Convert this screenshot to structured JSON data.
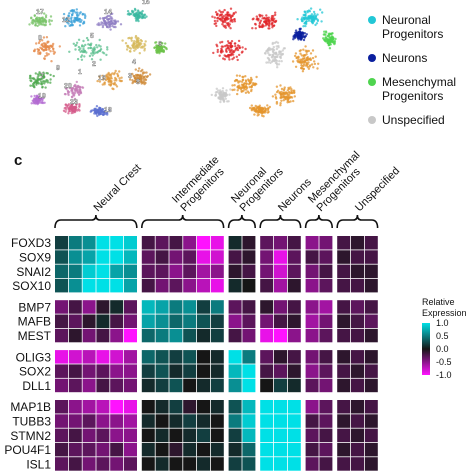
{
  "panel_label": "c",
  "legend_top": {
    "items": [
      {
        "label": "Neuronal Progenitors",
        "lines": [
          "Neuronal",
          "Progenitors"
        ],
        "color": "#22c7d6"
      },
      {
        "label": "Neurons",
        "lines": [
          "Neurons"
        ],
        "color": "#0a1f9e"
      },
      {
        "label": "Mesenchymal Progenitors",
        "lines": [
          "Mesenchymal",
          "Progenitors"
        ],
        "color": "#4fd44f"
      },
      {
        "label": "Unspecified",
        "lines": [
          "Unspecified"
        ],
        "color": "#c8c8c8"
      }
    ]
  },
  "tsne_cluster_labels": [
    "17",
    "12",
    "14",
    "15",
    "0",
    "5",
    "6",
    "7",
    "9",
    "20",
    "1",
    "16",
    "3",
    "19",
    "23",
    "18",
    "2",
    "4",
    "8"
  ],
  "heatmap": {
    "column_groups": [
      {
        "name": "Neural Crest",
        "lines": [
          "Neural Crest"
        ],
        "cols": 6
      },
      {
        "name": "Intermediate Progenitors",
        "lines": [
          "Intermediate",
          "Progenitors"
        ],
        "cols": 6
      },
      {
        "name": "Neuronal Progenitors",
        "lines": [
          "Neuronal",
          "Progenitors"
        ],
        "cols": 2
      },
      {
        "name": "Neurons",
        "lines": [
          "Neurons"
        ],
        "cols": 3
      },
      {
        "name": "Mesenchymal Progenitors",
        "lines": [
          "Mesenchymal",
          "Progenitors"
        ],
        "cols": 2
      },
      {
        "name": "Unspecified",
        "lines": [
          "Unspecified"
        ],
        "cols": 3
      }
    ],
    "row_blocks": [
      {
        "genes": [
          "FOXD3",
          "SOX9",
          "SNAI2",
          "SOX10"
        ]
      },
      {
        "genes": [
          "BMP7",
          "MAFB",
          "MEST"
        ]
      },
      {
        "genes": [
          "OLIG3",
          "SOX2",
          "DLL1"
        ]
      },
      {
        "genes": [
          "MAP1B",
          "TUBB3",
          "STMN2",
          "POU4F1",
          "ISL1"
        ]
      }
    ],
    "values": [
      [
        0.2,
        0.5,
        0.6,
        1.0,
        1.0,
        0.9,
        -0.2,
        -0.3,
        -0.2,
        -0.5,
        -1.0,
        -0.9,
        0.1,
        -0.1,
        -0.3,
        -0.4,
        -0.2,
        -0.5,
        -0.4,
        -0.2,
        -0.1,
        -0.2
      ],
      [
        0.3,
        0.6,
        0.7,
        1.0,
        1.0,
        0.8,
        -0.3,
        -0.2,
        -0.4,
        -0.3,
        -0.9,
        -0.8,
        -0.2,
        -0.1,
        -0.4,
        -0.9,
        -0.3,
        -0.2,
        -0.3,
        -0.1,
        -0.2,
        -0.2
      ],
      [
        0.4,
        0.5,
        0.9,
        1.0,
        0.7,
        0.6,
        -0.3,
        -0.3,
        -0.5,
        -0.3,
        -0.6,
        -0.5,
        -0.1,
        -0.2,
        -0.4,
        -0.8,
        -0.3,
        -0.4,
        -0.2,
        -0.2,
        -0.1,
        -0.1
      ],
      [
        0.3,
        0.6,
        1.0,
        1.0,
        1.0,
        0.7,
        -0.2,
        -0.4,
        -0.3,
        -0.5,
        -0.7,
        -0.9,
        0.1,
        0.0,
        -0.2,
        -0.6,
        -0.1,
        -0.5,
        -0.3,
        -0.2,
        -0.2,
        -0.1
      ],
      [
        -0.4,
        -0.2,
        -0.5,
        -0.1,
        0.1,
        -0.3,
        0.8,
        0.7,
        0.5,
        0.6,
        0.2,
        0.5,
        -0.3,
        -0.2,
        -0.1,
        -0.4,
        -0.2,
        -0.5,
        -0.6,
        -0.2,
        -0.3,
        -0.2
      ],
      [
        -0.2,
        -0.3,
        -0.1,
        0.1,
        -0.2,
        -0.4,
        0.7,
        0.6,
        0.4,
        0.5,
        0.3,
        0.2,
        -0.5,
        -0.3,
        -0.4,
        -0.2,
        -0.1,
        -0.6,
        -0.4,
        -0.1,
        -0.2,
        -0.3
      ],
      [
        -0.3,
        -0.1,
        -0.4,
        -0.2,
        -0.5,
        -1.0,
        0.4,
        0.5,
        0.6,
        0.3,
        0.1,
        0.2,
        -0.2,
        -0.4,
        -0.9,
        -1.0,
        -0.5,
        -0.5,
        -0.3,
        -0.2,
        -0.2,
        -0.1
      ],
      [
        -0.9,
        -0.8,
        -0.7,
        -0.9,
        -0.8,
        -0.6,
        0.4,
        0.3,
        0.2,
        0.3,
        0.0,
        0.1,
        1.0,
        0.5,
        -0.3,
        -0.1,
        -0.2,
        -0.4,
        -0.2,
        -0.1,
        -0.2,
        -0.1
      ],
      [
        -0.3,
        -0.2,
        -0.4,
        -0.3,
        -0.5,
        -0.5,
        0.2,
        0.3,
        0.1,
        0.2,
        0.0,
        0.1,
        0.8,
        1.0,
        -0.2,
        -0.3,
        -0.1,
        -0.5,
        -0.3,
        -0.2,
        -0.1,
        -0.2
      ],
      [
        -0.4,
        -0.3,
        -0.5,
        -0.2,
        -0.3,
        -0.4,
        0.1,
        0.2,
        0.3,
        0.0,
        0.1,
        0.2,
        0.6,
        1.0,
        0.0,
        0.2,
        0.1,
        -0.3,
        -0.4,
        -0.1,
        -0.2,
        -0.1
      ],
      [
        -0.3,
        -0.5,
        -0.6,
        -0.7,
        -1.0,
        -0.9,
        0.0,
        0.1,
        0.2,
        -0.1,
        0.0,
        0.1,
        0.3,
        0.8,
        1.0,
        1.0,
        1.0,
        -0.5,
        -0.3,
        -0.2,
        -0.1,
        -0.2
      ],
      [
        -0.4,
        -0.4,
        -0.3,
        -0.5,
        -0.5,
        -0.6,
        0.1,
        0.0,
        0.1,
        0.2,
        0.1,
        0.0,
        0.5,
        0.9,
        1.0,
        1.0,
        1.0,
        -0.2,
        -0.3,
        -0.1,
        -0.2,
        -0.1
      ],
      [
        -0.3,
        -0.2,
        -0.4,
        -0.3,
        -0.5,
        -0.5,
        0.0,
        0.1,
        0.0,
        0.1,
        0.2,
        0.0,
        0.2,
        0.8,
        1.0,
        1.0,
        1.0,
        -0.3,
        -0.2,
        -0.2,
        -0.1,
        -0.2
      ],
      [
        -0.2,
        -0.3,
        -0.3,
        -0.4,
        -0.2,
        -0.5,
        0.1,
        0.0,
        -0.1,
        0.1,
        0.0,
        0.1,
        0.1,
        0.4,
        1.0,
        1.0,
        1.0,
        -0.2,
        -0.3,
        -0.1,
        -0.2,
        -0.1
      ],
      [
        -0.3,
        -0.2,
        -0.4,
        -0.3,
        -0.4,
        -0.3,
        0.0,
        0.1,
        0.0,
        0.0,
        0.1,
        0.0,
        0.2,
        0.3,
        1.0,
        1.0,
        1.0,
        -0.3,
        -0.2,
        -0.2,
        -0.2,
        -0.1
      ]
    ],
    "legend": {
      "title_lines": [
        "Relative",
        "Expression"
      ],
      "ticks": [
        "1.0",
        "0.5",
        "0.0",
        "-0.5",
        "-1.0"
      ]
    }
  },
  "colors": {
    "high": "#00e0e6",
    "mid": "#161616",
    "low": "#ff12ff",
    "separator": "#ffffff"
  }
}
